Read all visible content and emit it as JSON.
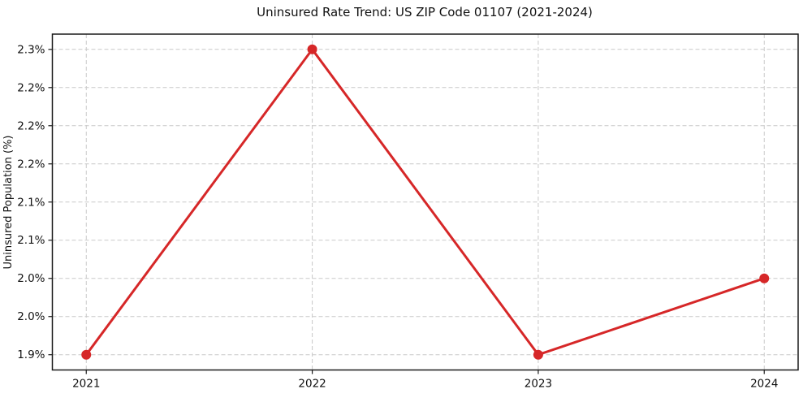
{
  "chart_data": {
    "type": "line",
    "title": "Uninsured Rate Trend: US ZIP Code 01107 (2021-2024)",
    "xlabel": "",
    "ylabel": "Uninsured Population (%)",
    "x": [
      2021,
      2022,
      2023,
      2024
    ],
    "x_tick_labels": [
      "2021",
      "2022",
      "2023",
      "2024"
    ],
    "values": [
      1.9,
      2.3,
      1.9,
      2.0
    ],
    "y_ticks": [
      1.9,
      1.95,
      2.0,
      2.05,
      2.1,
      2.15,
      2.2,
      2.25,
      2.3
    ],
    "y_tick_labels": [
      "1.9%",
      "2.0%",
      "2.0%",
      "2.1%",
      "2.1%",
      "2.2%",
      "2.2%",
      "2.2%",
      "2.3%"
    ],
    "xlim": [
      2020.85,
      2024.15
    ],
    "ylim": [
      1.88,
      2.32
    ],
    "grid": true,
    "grid_style": "dashed",
    "legend": "none",
    "colors": {
      "line": "#d62728",
      "marker": "#d62728",
      "grid": "#c9c9c9",
      "spine": "#1a1a1a",
      "text": "#111111",
      "background": "#ffffff"
    }
  }
}
